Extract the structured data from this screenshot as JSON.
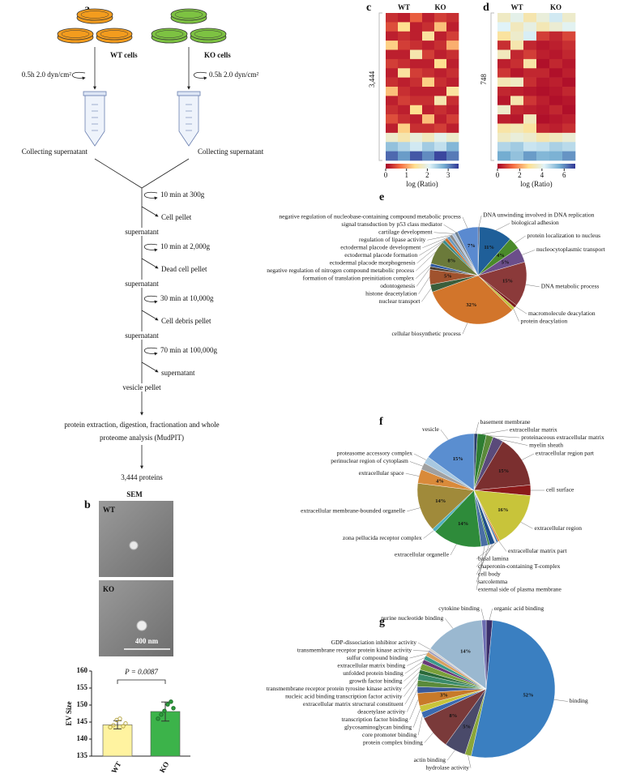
{
  "panel_labels": [
    "a",
    "b",
    "c",
    "d",
    "e",
    "f",
    "g"
  ],
  "workflow": {
    "groups": [
      {
        "label": "WT cells",
        "shear": "0.5h 2.0 dyn/cm²",
        "collect": "Collecting supernatant"
      },
      {
        "label": "KO cells",
        "shear": "0.5h 2.0 dyn/cm²",
        "collect": "Collecting supernatant"
      }
    ],
    "steps": [
      {
        "spin": "10 min at 300g",
        "pellet": "Cell pellet",
        "result": "supernatant"
      },
      {
        "spin": "10 min at 2,000g",
        "pellet": "Dead cell pellet",
        "result": "supernatant"
      },
      {
        "spin": "30 min at 10,000g",
        "pellet": "Cell debris pellet",
        "result": "supernatant"
      },
      {
        "spin": "70 min at 100,000g",
        "pellet": "supernatant",
        "result": "vesicle pellet"
      }
    ],
    "analysis": [
      "protein extraction, digestion, fractionation and whole",
      "proteome analysis (MudPIT)"
    ],
    "result": "3,444 proteins"
  },
  "sem": {
    "title": "SEM",
    "images": [
      "WT",
      "KO"
    ],
    "scale_bar": "400 nm"
  },
  "chart_data": [
    {
      "type": "bar",
      "categories": [
        "WT",
        "KO"
      ],
      "values": [
        144.2,
        148.1
      ],
      "errors": [
        1.2,
        2.8
      ],
      "points": [
        [
          143.5,
          144.1,
          145.6,
          146.0,
          143.8,
          144.6
        ],
        [
          146.0,
          147.2,
          148.3,
          150.2,
          151.0,
          149.1
        ]
      ],
      "colors": [
        "#fff3a0",
        "#3cb34a"
      ],
      "ylabel": "EV Size",
      "ylim": [
        135,
        160
      ],
      "yticks": [
        135,
        140,
        145,
        150,
        155,
        160
      ],
      "annotation": "P = 0.0087"
    },
    {
      "type": "heatmap",
      "columns": [
        "WT",
        "KO"
      ],
      "row_label": "3,444",
      "zlabel": "log (Ratio)",
      "zlim": [
        0,
        3.5
      ],
      "zticks": [
        0,
        1,
        2,
        3
      ],
      "colorscale": [
        "#a50026",
        "#f46d43",
        "#fee090",
        "#e0f3f8",
        "#74add1",
        "#313695"
      ],
      "values": [
        [
          0.3,
          0.2,
          0.6,
          0.2,
          0.4,
          0.3
        ],
        [
          0.5,
          1.4,
          0.2,
          0.3,
          1.2,
          0.2
        ],
        [
          0.2,
          0.3,
          0.2,
          1.5,
          0.2,
          0.4
        ],
        [
          1.3,
          0.4,
          0.3,
          0.2,
          0.3,
          1.1
        ],
        [
          0.2,
          0.2,
          1.6,
          0.4,
          0.2,
          0.3
        ],
        [
          0.4,
          0.3,
          0.2,
          0.2,
          1.4,
          0.2
        ],
        [
          0.2,
          1.5,
          0.4,
          0.3,
          0.2,
          0.3
        ],
        [
          0.3,
          0.2,
          0.3,
          1.3,
          0.3,
          0.2
        ],
        [
          1.2,
          0.3,
          0.2,
          0.2,
          0.2,
          1.5
        ],
        [
          0.2,
          0.4,
          0.3,
          0.3,
          1.6,
          0.3
        ],
        [
          0.3,
          0.2,
          1.4,
          0.2,
          0.3,
          0.2
        ],
        [
          0.5,
          0.3,
          0.2,
          1.2,
          0.2,
          0.4
        ],
        [
          0.2,
          1.3,
          0.3,
          0.3,
          0.4,
          0.2
        ],
        [
          1.8,
          1.6,
          1.9,
          1.7,
          2.0,
          1.8
        ],
        [
          2.6,
          2.4,
          2.2,
          2.5,
          2.3,
          2.7
        ],
        [
          3.2,
          2.9,
          3.3,
          3.0,
          3.4,
          3.1
        ]
      ]
    },
    {
      "type": "heatmap",
      "columns": [
        "WT",
        "KO"
      ],
      "row_label": "748",
      "zlabel": "log (Ratio)",
      "zlim": [
        0,
        7
      ],
      "zticks": [
        0,
        2,
        4,
        6
      ],
      "colorscale": [
        "#a50026",
        "#f46d43",
        "#fee090",
        "#e0f3f8",
        "#74add1",
        "#313695"
      ],
      "values": [
        [
          3.5,
          4.0,
          3.2,
          3.8,
          4.4,
          3.6
        ],
        [
          4.2,
          3.4,
          3.9,
          3.3,
          3.7,
          4.1
        ],
        [
          3.0,
          3.6,
          4.3,
          0.8,
          0.5,
          0.9
        ],
        [
          0.6,
          3.2,
          0.5,
          0.3,
          0.4,
          0.6
        ],
        [
          3.4,
          0.5,
          0.8,
          0.4,
          0.3,
          0.5
        ],
        [
          0.4,
          0.6,
          3.1,
          0.2,
          0.5,
          0.3
        ],
        [
          0.7,
          0.3,
          0.5,
          0.5,
          0.2,
          0.4
        ],
        [
          3.3,
          3.5,
          0.6,
          0.3,
          0.4,
          0.2
        ],
        [
          0.5,
          0.4,
          0.3,
          0.2,
          0.3,
          0.5
        ],
        [
          0.3,
          3.2,
          0.7,
          0.4,
          0.2,
          0.3
        ],
        [
          3.6,
          0.5,
          0.4,
          0.3,
          0.5,
          0.2
        ],
        [
          0.4,
          0.3,
          3.4,
          0.2,
          0.3,
          0.4
        ],
        [
          3.1,
          3.3,
          3.0,
          0.5,
          0.4,
          0.6
        ],
        [
          3.5,
          3.8,
          3.6,
          3.2,
          3.4,
          3.7
        ],
        [
          4.8,
          5.0,
          4.5,
          4.6,
          4.9,
          4.7
        ],
        [
          5.6,
          5.2,
          5.8,
          5.4,
          5.5,
          5.9
        ]
      ]
    },
    {
      "type": "pie",
      "categories": [
        "DNA unwinding involved in DNA replication",
        "biological adhesion",
        "protein localization to nucleus",
        "nucleocytoplasmic transport",
        "DNA metabolic process",
        "macromolecule deacylation",
        "protein deacylation",
        "cellular biosynthetic process",
        "nuclear transport",
        "histone deacetylation",
        "odontogenesis",
        "formation of translation preinitiation complex",
        "negative regulation of nitrogen compound metabolic process",
        "ectodermal placode morphogenesis",
        "ectodermal placode formation",
        "ectodermal placode development",
        "regulation of lipase activity",
        "cartilage development",
        "signal transduction by p53 class mediator",
        "negative regulation of nucleobase-containing compound metabolic process"
      ],
      "values": [
        0.5,
        11,
        4,
        5,
        15,
        1,
        1,
        32,
        2.5,
        5,
        1,
        1,
        8,
        1,
        1,
        1,
        1,
        1,
        1,
        7
      ],
      "value_labels": [
        null,
        "11%",
        "4%",
        "5%",
        "15%",
        null,
        null,
        "32%",
        null,
        "5%",
        null,
        null,
        "8%",
        null,
        null,
        null,
        null,
        null,
        null,
        "7%"
      ],
      "colors": [
        "#2c3e6b",
        "#1f5f99",
        "#4a8a2a",
        "#6b4e8a",
        "#8b3a3a",
        "#7a1b1b",
        "#c0c040",
        "#d2752b",
        "#3b5e3b",
        "#a0522d",
        "#4a3b2a",
        "#2f5aa0",
        "#6b7a3a",
        "#3a8a8a",
        "#c86a2a",
        "#6a9ac0",
        "#8a8a8a",
        "#b0c4de",
        "#708090",
        "#5a8ad0"
      ]
    },
    {
      "type": "pie",
      "categories": [
        "basement membrane",
        "extracellular matrix",
        "proteinaceous extracellular matrix",
        "myelin sheath",
        "extracellular region part",
        "cell surface",
        "extracellular region",
        "extracellular matrix part",
        "basal lamina",
        "chaperonin-containing T-complex",
        "cell body",
        "sarcolemma",
        "external side of plasma membrane",
        "extracellular organelle",
        "zona pellucida receptor complex",
        "extracellular membrane-bounded organelle",
        "extracellular space",
        "perinuclear region of cytoplasm",
        "proteasome accessory complex",
        "vesicle"
      ],
      "values": [
        1,
        2.5,
        2,
        3,
        15,
        3,
        16,
        0.5,
        0.5,
        0.5,
        1.5,
        0.5,
        2,
        14,
        1,
        14,
        4,
        2,
        2,
        15
      ],
      "value_labels": [
        null,
        null,
        null,
        null,
        "15%",
        null,
        "16%",
        null,
        null,
        null,
        null,
        null,
        null,
        "14%",
        null,
        "14%",
        "4%",
        null,
        null,
        "15%"
      ],
      "colors": [
        "#2a3f6a",
        "#2e7d32",
        "#5a8a3a",
        "#5a4a7a",
        "#7b2f2f",
        "#8b1a1a",
        "#c8c43a",
        "#d98030",
        "#3a70b0",
        "#e0e0e0",
        "#1f4e8a",
        "#2f7d2f",
        "#4a6fa5",
        "#2e8b3a",
        "#4fb0c0",
        "#a08a3a",
        "#d98a3a",
        "#a0a0a0",
        "#a8c8e0",
        "#5a8ed0"
      ]
    },
    {
      "type": "pie",
      "categories": [
        "organic acid binding",
        "binding",
        "hydrolase activity",
        "actin binding",
        "protein complex binding",
        "core promoter binding",
        "glycosaminoglycan binding",
        "transcription factor binding",
        "deacetylase activity",
        "extracellular matrix structural constituent",
        "nucleic acid binding transcription factor activity",
        "transmembrane receptor protein tyrosine kinase activity",
        "growth factor binding",
        "unfolded protein binding",
        "extracellular matrix binding",
        "sulfur compound binding",
        "transmembrane receptor protein kinase activity",
        "GDP-dissociation inhibitor activity",
        "purine nucleotide binding",
        "cytokine binding"
      ],
      "values": [
        1.5,
        52,
        1.5,
        5,
        8,
        1.5,
        1.5,
        3,
        1.5,
        1.5,
        1.5,
        1,
        1.5,
        1,
        1,
        1,
        0.5,
        0.5,
        14,
        1
      ],
      "value_labels": [
        null,
        "52%",
        null,
        "5%",
        "8%",
        null,
        null,
        "3%",
        null,
        null,
        null,
        null,
        null,
        null,
        null,
        null,
        null,
        null,
        "14%",
        null
      ],
      "colors": [
        "#3a2f6a",
        "#3a7fc1",
        "#8aa63a",
        "#4a4a6a",
        "#7a3a3a",
        "#3a6ab0",
        "#c8c43a",
        "#c87a2a",
        "#3a5a9a",
        "#5a8a3a",
        "#3a8a6a",
        "#2a6a3a",
        "#7aa03a",
        "#6a3a7a",
        "#3a9a8a",
        "#d8a060",
        "#a0a0c0",
        "#d0d0d0",
        "#9ab8d0",
        "#6a6ab0"
      ]
    }
  ]
}
